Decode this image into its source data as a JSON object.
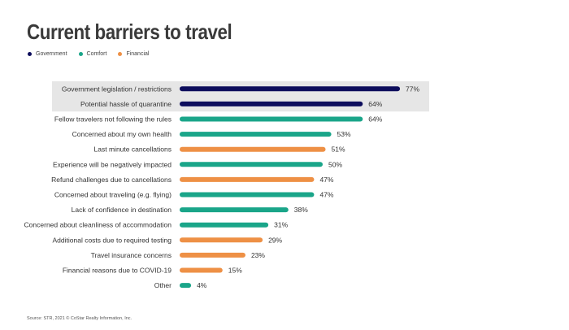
{
  "chart_data": {
    "type": "bar",
    "orientation": "horizontal",
    "title": "Current barriers to travel",
    "legend_position": "top-left",
    "series": [
      {
        "name": "Government",
        "color": "#0d0d5c"
      },
      {
        "name": "Comfort",
        "color": "#1aa589"
      },
      {
        "name": "Financial",
        "color": "#ee9045"
      }
    ],
    "categories": [
      "Government legislation / restrictions",
      "Potential hassle of quarantine",
      "Fellow travelers not following the rules",
      "Concerned about my own health",
      "Last minute cancellations",
      "Experience will be negatively impacted",
      "Refund challenges due to cancellations",
      "Concerned about traveling (e.g. flying)",
      "Lack of confidence in destination",
      "Concerned about cleanliness of accommodation",
      "Additional costs due to required testing",
      "Travel insurance concerns",
      "Financial reasons due to COVID-19",
      "Other"
    ],
    "values": [
      77,
      64,
      64,
      53,
      51,
      50,
      47,
      47,
      38,
      31,
      29,
      23,
      15,
      4
    ],
    "value_labels": [
      "77%",
      "64%",
      "64%",
      "53%",
      "51%",
      "50%",
      "47%",
      "47%",
      "38%",
      "31%",
      "29%",
      "23%",
      "15%",
      "4%"
    ],
    "bar_series": [
      "Government",
      "Government",
      "Comfort",
      "Comfort",
      "Financial",
      "Comfort",
      "Financial",
      "Comfort",
      "Comfort",
      "Comfort",
      "Financial",
      "Financial",
      "Financial",
      "Comfort"
    ],
    "highlighted_categories": [
      "Government legislation / restrictions",
      "Potential hassle of quarantine"
    ],
    "highlight_color": "#e6e6e6",
    "xlim": [
      0,
      100
    ],
    "grid": false
  },
  "source": "Source: STR, 2021 © CoStar Realty Information, Inc."
}
